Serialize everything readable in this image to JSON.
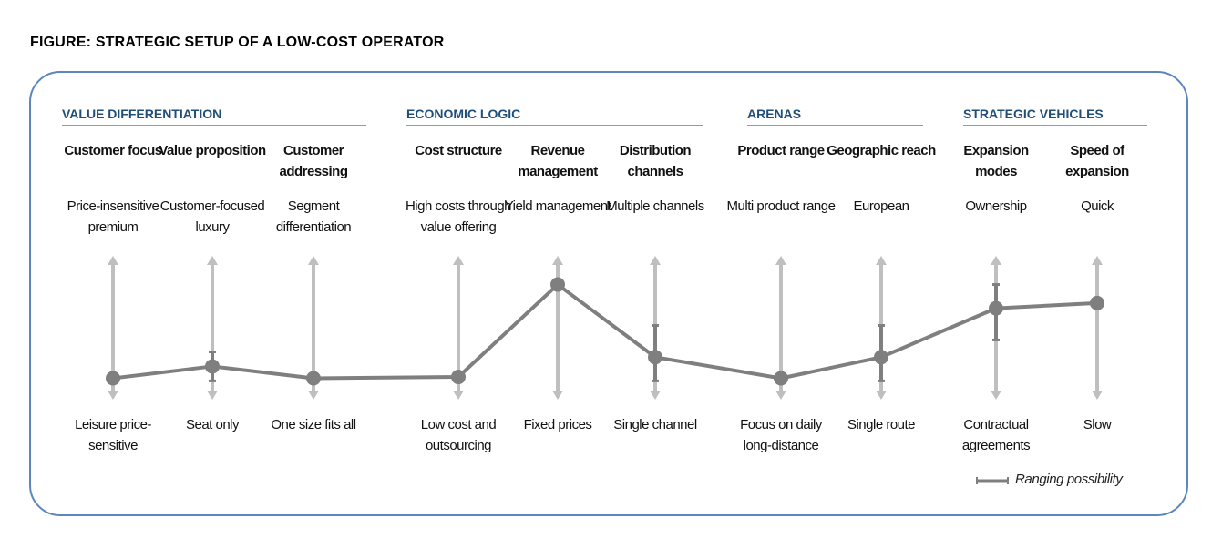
{
  "title": "FIGURE: STRATEGIC SETUP OF A LOW-COST OPERATOR",
  "groups": [
    {
      "label": "VALUE DIFFERENTIATION"
    },
    {
      "label": "ECONOMIC LOGIC"
    },
    {
      "label": "ARENAS"
    },
    {
      "label": "STRATEGIC VEHICLES"
    }
  ],
  "columns": [
    {
      "header": "Customer focus",
      "top": "Price-insensitive premium",
      "bottom": "Leisure price-sensitive",
      "value": 0.1,
      "range": null
    },
    {
      "header": "Value proposition",
      "top": "Customer-focused luxury",
      "bottom": "Seat only",
      "value": 0.19,
      "range": [
        0.08,
        0.3
      ]
    },
    {
      "header": "Customer addressing",
      "top": "Segment differentiation",
      "bottom": "One size fits all",
      "value": 0.1,
      "range": null
    },
    {
      "header": "Cost structure",
      "top": "High costs through value offering",
      "bottom": "Low cost and outsourcing",
      "value": 0.11,
      "range": null
    },
    {
      "header": "Revenue management",
      "top": "Yield management",
      "bottom": "Fixed prices",
      "value": 0.81,
      "range": null
    },
    {
      "header": "Distribution channels",
      "top": "Multiple channels",
      "bottom": "Single channel",
      "value": 0.26,
      "range": [
        0.08,
        0.5
      ]
    },
    {
      "header": "Product range",
      "top": "Multi product range",
      "bottom": "Focus on daily long-distance",
      "value": 0.1,
      "range": null
    },
    {
      "header": "Geographic reach",
      "top": "European",
      "bottom": "Single route",
      "value": 0.26,
      "range": [
        0.08,
        0.5
      ]
    },
    {
      "header": "Expansion modes",
      "top": "Ownership",
      "bottom": "Contractual agreements",
      "value": 0.63,
      "range": [
        0.39,
        0.81
      ]
    },
    {
      "header": "Speed of expansion",
      "top": "Quick",
      "bottom": "Slow",
      "value": 0.67,
      "range": null
    }
  ],
  "legend": {
    "label": "Ranging possibility"
  },
  "colors": {
    "axis": "#bfbfbf",
    "line": "#7f7f7f",
    "group": "#1f4e79",
    "frame": "#5b86c0"
  }
}
